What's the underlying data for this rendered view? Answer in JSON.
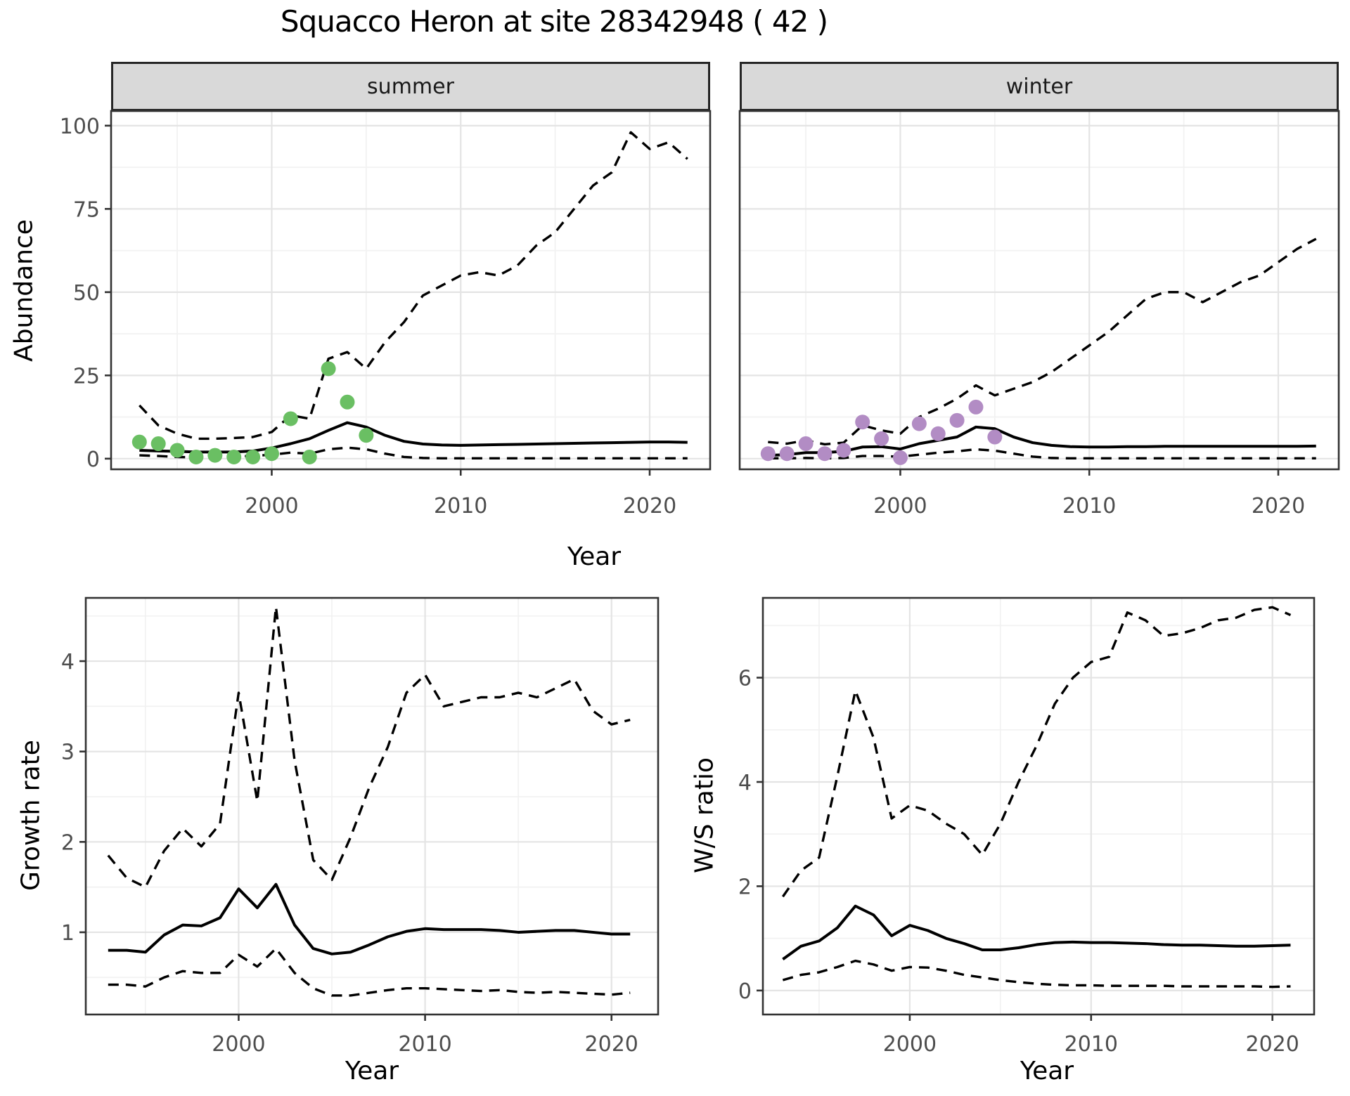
{
  "title": "Squacco Heron at site 28342948 ( 42 )",
  "colors": {
    "point_green": "#6abf63",
    "point_purple": "#b28cc4",
    "line": "#000000",
    "strip_bg": "#d9d9d9",
    "strip_border": "#262626",
    "panel_border": "#333333",
    "grid_major": "#e4e4e4",
    "grid_minor": "#f2f2f2",
    "tick_text": "#4d4d4d"
  },
  "chart_data": [
    {
      "id": "summer",
      "type": "line",
      "facet_label": "summer",
      "xlabel": "Year",
      "ylabel": "Abundance",
      "xlim": [
        1991.5,
        2023.2
      ],
      "ylim": [
        -3.2,
        104.4
      ],
      "x_ticks": [
        2000,
        2010,
        2020
      ],
      "y_ticks": [
        0,
        25,
        50,
        75,
        100
      ],
      "x_minor": [
        1995,
        2005,
        2015
      ],
      "y_minor": [
        12.5,
        37.5,
        62.5,
        87.5
      ],
      "years": [
        1993,
        1994,
        1995,
        1996,
        1997,
        1998,
        1999,
        2000,
        2001,
        2002,
        2003,
        2004,
        2005,
        2006,
        2007,
        2008,
        2009,
        2010,
        2011,
        2012,
        2013,
        2014,
        2015,
        2016,
        2017,
        2018,
        2019,
        2020,
        2021,
        2022
      ],
      "series": [
        {
          "name": "upper-ci",
          "style": "dashed",
          "values": [
            16,
            10,
            7.5,
            6,
            6,
            6.2,
            6.5,
            8,
            13,
            12,
            30,
            32,
            27,
            35,
            41,
            49,
            52,
            55,
            56,
            55,
            58,
            64,
            68,
            75,
            82,
            86,
            98,
            93,
            95,
            90
          ]
        },
        {
          "name": "fitted-median",
          "style": "solid",
          "values": [
            2.5,
            2.3,
            2.2,
            2.0,
            2.0,
            2.0,
            2.3,
            3.2,
            4.5,
            6.0,
            8.5,
            10.8,
            9.5,
            7.0,
            5.2,
            4.4,
            4.1,
            4.0,
            4.1,
            4.2,
            4.3,
            4.4,
            4.5,
            4.6,
            4.7,
            4.8,
            4.9,
            5.0,
            5.0,
            4.9
          ]
        },
        {
          "name": "lower-ci",
          "style": "dashed",
          "values": [
            1.0,
            0.8,
            0.5,
            0.4,
            0.6,
            0.7,
            0.8,
            1.2,
            1.8,
            1.5,
            2.8,
            3.3,
            2.8,
            1.5,
            0.5,
            0.2,
            0.1,
            0.1,
            0.1,
            0.1,
            0.1,
            0.1,
            0.1,
            0.1,
            0.1,
            0.1,
            0.1,
            0.1,
            0.1,
            0.1
          ]
        }
      ],
      "points": {
        "name": "observed-counts",
        "color": "#6abf63",
        "years": [
          1993,
          1994,
          1995,
          1996,
          1997,
          1998,
          1999,
          2000,
          2001,
          2002,
          2003,
          2004,
          2005
        ],
        "values": [
          5,
          4.5,
          2.5,
          0.5,
          1,
          0.5,
          0.5,
          1.5,
          12,
          0.5,
          27,
          17,
          7
        ]
      }
    },
    {
      "id": "winter",
      "type": "line",
      "facet_label": "winter",
      "xlabel": "Year",
      "ylabel": "Abundance",
      "xlim": [
        1991.5,
        2023.2
      ],
      "ylim": [
        -3.2,
        104.4
      ],
      "x_ticks": [
        2000,
        2010,
        2020
      ],
      "y_ticks": [
        0,
        25,
        50,
        75,
        100
      ],
      "x_minor": [
        1995,
        2005,
        2015
      ],
      "y_minor": [
        12.5,
        37.5,
        62.5,
        87.5
      ],
      "years": [
        1993,
        1994,
        1995,
        1996,
        1997,
        1998,
        1999,
        2000,
        2001,
        2002,
        2003,
        2004,
        2005,
        2006,
        2007,
        2008,
        2009,
        2010,
        2011,
        2012,
        2013,
        2014,
        2015,
        2016,
        2017,
        2018,
        2019,
        2020,
        2021,
        2022
      ],
      "series": [
        {
          "name": "upper-ci",
          "style": "dashed",
          "values": [
            5,
            4.5,
            5.5,
            4.3,
            4.8,
            10,
            8.5,
            7.5,
            12.5,
            15,
            18,
            22,
            19,
            21,
            23,
            26,
            30,
            34,
            38,
            43,
            48,
            50,
            50,
            47,
            50,
            53,
            55,
            59,
            63,
            66
          ]
        },
        {
          "name": "fitted-median",
          "style": "solid",
          "values": [
            1.0,
            1.2,
            1.8,
            1.8,
            2.2,
            3.5,
            3.6,
            2.9,
            4.5,
            5.5,
            6.5,
            9.5,
            9.0,
            6.5,
            4.8,
            4.0,
            3.6,
            3.5,
            3.5,
            3.6,
            3.6,
            3.7,
            3.7,
            3.7,
            3.7,
            3.7,
            3.7,
            3.7,
            3.7,
            3.8
          ]
        },
        {
          "name": "lower-ci",
          "style": "dashed",
          "values": [
            0.1,
            0.1,
            0.2,
            0.1,
            0.2,
            0.8,
            0.8,
            0.6,
            1.2,
            1.8,
            2.2,
            2.8,
            2.4,
            1.5,
            0.6,
            0.2,
            0.1,
            0.1,
            0.1,
            0.1,
            0.1,
            0.1,
            0.1,
            0.1,
            0.1,
            0.1,
            0.1,
            0.1,
            0.1,
            0.1
          ]
        }
      ],
      "points": {
        "name": "observed-counts",
        "color": "#b28cc4",
        "years": [
          1993,
          1994,
          1995,
          1996,
          1997,
          1998,
          1999,
          2000,
          2001,
          2002,
          2003,
          2004,
          2005
        ],
        "values": [
          1.5,
          1.5,
          4.5,
          1.5,
          2.5,
          11,
          6,
          0.3,
          10.5,
          7.5,
          11.5,
          15.5,
          6.5
        ]
      }
    },
    {
      "id": "growth",
      "type": "line",
      "xlabel": "Year",
      "ylabel": "Growth rate",
      "xlim": [
        1991.8,
        2022.5
      ],
      "ylim": [
        0.09,
        4.7
      ],
      "x_ticks": [
        2000,
        2010,
        2020
      ],
      "y_ticks": [
        1,
        2,
        3,
        4
      ],
      "x_minor": [
        1995,
        2005,
        2015
      ],
      "y_minor": [
        0.5,
        1.5,
        2.5,
        3.5,
        4.5
      ],
      "years": [
        1993,
        1994,
        1995,
        1996,
        1997,
        1998,
        1999,
        2000,
        2001,
        2002,
        2003,
        2004,
        2005,
        2006,
        2007,
        2008,
        2009,
        2010,
        2011,
        2012,
        2013,
        2014,
        2015,
        2016,
        2017,
        2018,
        2019,
        2020,
        2021
      ],
      "series": [
        {
          "name": "upper-ci",
          "style": "dashed",
          "values": [
            1.85,
            1.6,
            1.5,
            1.9,
            2.15,
            1.95,
            2.2,
            3.65,
            2.45,
            4.6,
            2.9,
            1.8,
            1.58,
            2.05,
            2.6,
            3.05,
            3.65,
            3.85,
            3.5,
            3.55,
            3.6,
            3.6,
            3.65,
            3.6,
            3.7,
            3.8,
            3.45,
            3.3,
            3.35
          ]
        },
        {
          "name": "fitted-median",
          "style": "solid",
          "values": [
            0.8,
            0.8,
            0.78,
            0.97,
            1.08,
            1.07,
            1.16,
            1.48,
            1.27,
            1.53,
            1.08,
            0.82,
            0.76,
            0.78,
            0.86,
            0.95,
            1.01,
            1.04,
            1.03,
            1.03,
            1.03,
            1.02,
            1.0,
            1.01,
            1.02,
            1.02,
            1.0,
            0.98,
            0.98
          ]
        },
        {
          "name": "lower-ci",
          "style": "dashed",
          "values": [
            0.42,
            0.42,
            0.4,
            0.5,
            0.57,
            0.55,
            0.55,
            0.75,
            0.62,
            0.82,
            0.55,
            0.38,
            0.3,
            0.3,
            0.33,
            0.36,
            0.38,
            0.38,
            0.37,
            0.36,
            0.35,
            0.36,
            0.34,
            0.33,
            0.34,
            0.33,
            0.32,
            0.31,
            0.33
          ]
        }
      ]
    },
    {
      "id": "ws",
      "type": "line",
      "xlabel": "Year",
      "ylabel": "W/S ratio",
      "xlim": [
        1991.9,
        2022.3
      ],
      "ylim": [
        -0.46,
        7.53
      ],
      "x_ticks": [
        2000,
        2010,
        2020
      ],
      "y_ticks": [
        0,
        2,
        4,
        6
      ],
      "x_minor": [
        1995,
        2005,
        2015
      ],
      "y_minor": [
        1,
        3,
        5,
        7
      ],
      "years": [
        1993,
        1994,
        1995,
        1996,
        1997,
        1998,
        1999,
        2000,
        2001,
        2002,
        2003,
        2004,
        2005,
        2006,
        2007,
        2008,
        2009,
        2010,
        2011,
        2012,
        2013,
        2014,
        2015,
        2016,
        2017,
        2018,
        2019,
        2020,
        2021
      ],
      "series": [
        {
          "name": "upper-ci",
          "style": "dashed",
          "values": [
            1.8,
            2.3,
            2.55,
            4.1,
            5.75,
            4.85,
            3.3,
            3.55,
            3.45,
            3.2,
            3.0,
            2.6,
            3.2,
            4.0,
            4.7,
            5.5,
            6.0,
            6.3,
            6.4,
            7.25,
            7.1,
            6.8,
            6.85,
            6.95,
            7.1,
            7.15,
            7.3,
            7.35,
            7.2
          ]
        },
        {
          "name": "fitted-median",
          "style": "solid",
          "values": [
            0.6,
            0.85,
            0.95,
            1.2,
            1.62,
            1.45,
            1.05,
            1.25,
            1.15,
            1.0,
            0.9,
            0.78,
            0.78,
            0.82,
            0.88,
            0.92,
            0.93,
            0.92,
            0.92,
            0.91,
            0.9,
            0.88,
            0.87,
            0.87,
            0.86,
            0.85,
            0.85,
            0.86,
            0.87
          ]
        },
        {
          "name": "lower-ci",
          "style": "dashed",
          "values": [
            0.2,
            0.3,
            0.35,
            0.45,
            0.57,
            0.5,
            0.38,
            0.45,
            0.44,
            0.38,
            0.3,
            0.25,
            0.2,
            0.16,
            0.13,
            0.11,
            0.1,
            0.1,
            0.09,
            0.09,
            0.09,
            0.09,
            0.08,
            0.08,
            0.08,
            0.08,
            0.08,
            0.07,
            0.08
          ]
        }
      ]
    }
  ]
}
